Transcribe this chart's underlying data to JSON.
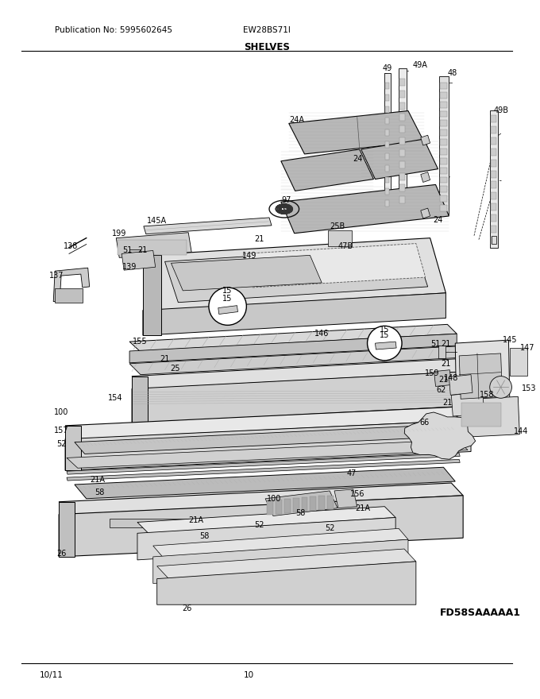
{
  "publication_no": "Publication No: 5995602645",
  "model": "EW28BS71I",
  "title": "SHELVES",
  "diagram_code": "FD58SAAAAA1",
  "footer_left": "10/11",
  "footer_center": "10",
  "bg_color": "#ffffff"
}
